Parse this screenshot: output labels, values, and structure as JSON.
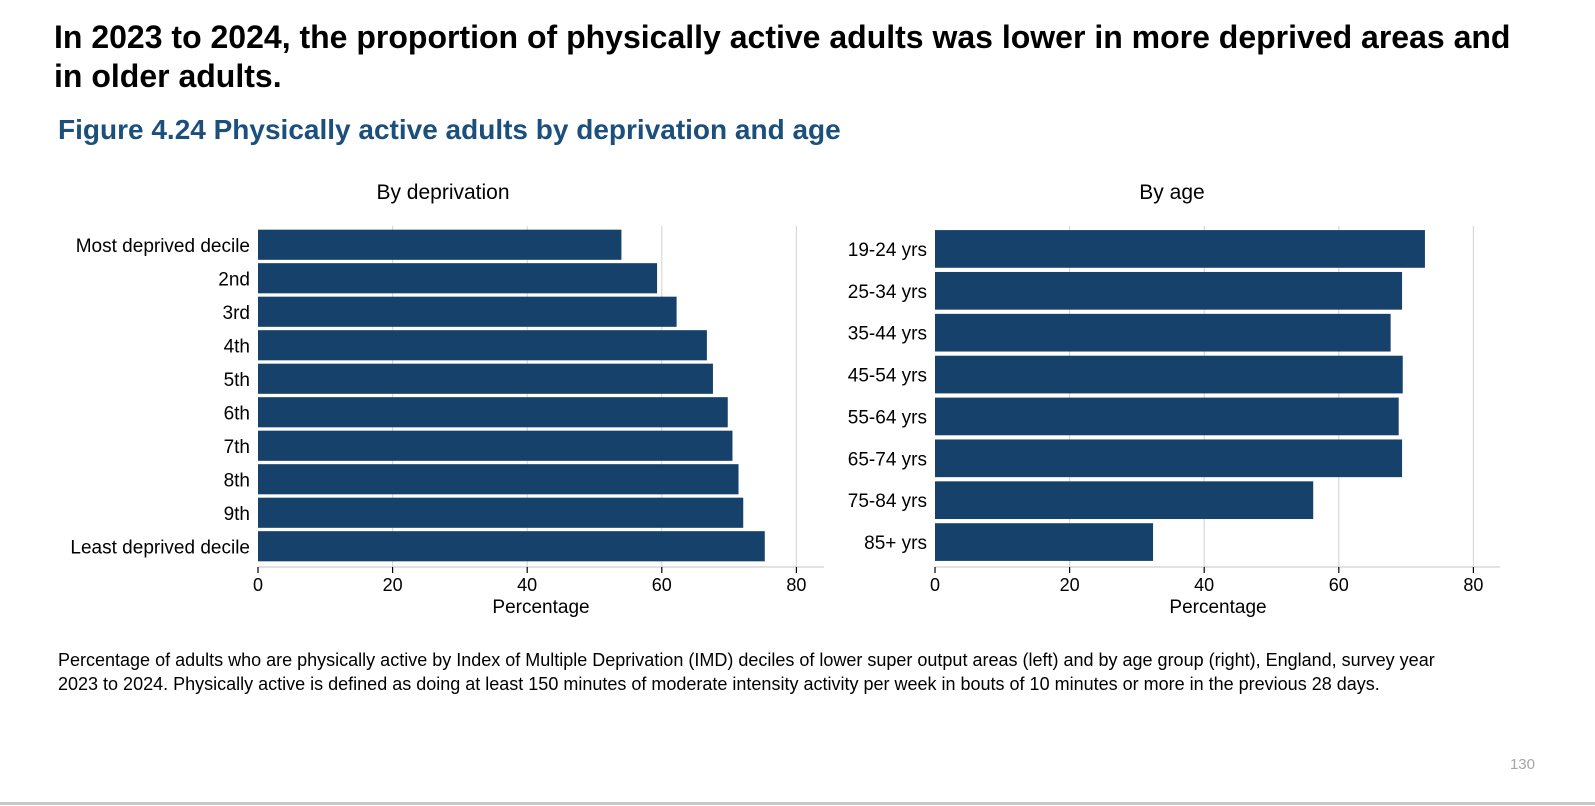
{
  "headline": "In 2023 to 2024, the proportion of physically active adults was lower in more deprived areas and in older adults.",
  "figure_title": "Figure 4.24 Physically active adults by deprivation and age",
  "caption": "Percentage of adults who are physically active by Index of Multiple Deprivation (IMD) deciles of lower super output areas (left) and by age group (right), England, survey year 2023 to 2024. Physically active is defined as doing at least 150 minutes of moderate intensity activity per week in bouts of 10 minutes or more in the previous 28 days.",
  "page_number": "130",
  "bar_color": "#15416a",
  "chart_data": [
    {
      "type": "bar",
      "orientation": "horizontal",
      "title": "By deprivation",
      "categories": [
        "Most deprived decile",
        "2nd",
        "3rd",
        "4th",
        "5th",
        "6th",
        "7th",
        "8th",
        "9th",
        "Least deprived decile"
      ],
      "values": [
        54,
        59.3,
        62.2,
        66.7,
        67.6,
        69.8,
        70.5,
        71.4,
        72.1,
        75.3
      ],
      "xlabel": "Percentage",
      "ylabel": "",
      "xlim": [
        0,
        84
      ],
      "xticks": [
        0,
        20,
        40,
        60,
        80
      ],
      "grid": "vertical"
    },
    {
      "type": "bar",
      "orientation": "horizontal",
      "title": "By age",
      "categories": [
        "19-24 yrs",
        "25-34 yrs",
        "35-44 yrs",
        "45-54 yrs",
        "55-64 yrs",
        "65-74 yrs",
        "75-84 yrs",
        "85+ yrs"
      ],
      "values": [
        72.8,
        69.4,
        67.7,
        69.5,
        68.9,
        69.4,
        56.2,
        32.4
      ],
      "xlabel": "Percentage",
      "ylabel": "",
      "xlim": [
        0,
        84
      ],
      "xticks": [
        0,
        20,
        40,
        60,
        80
      ],
      "grid": "vertical"
    }
  ]
}
